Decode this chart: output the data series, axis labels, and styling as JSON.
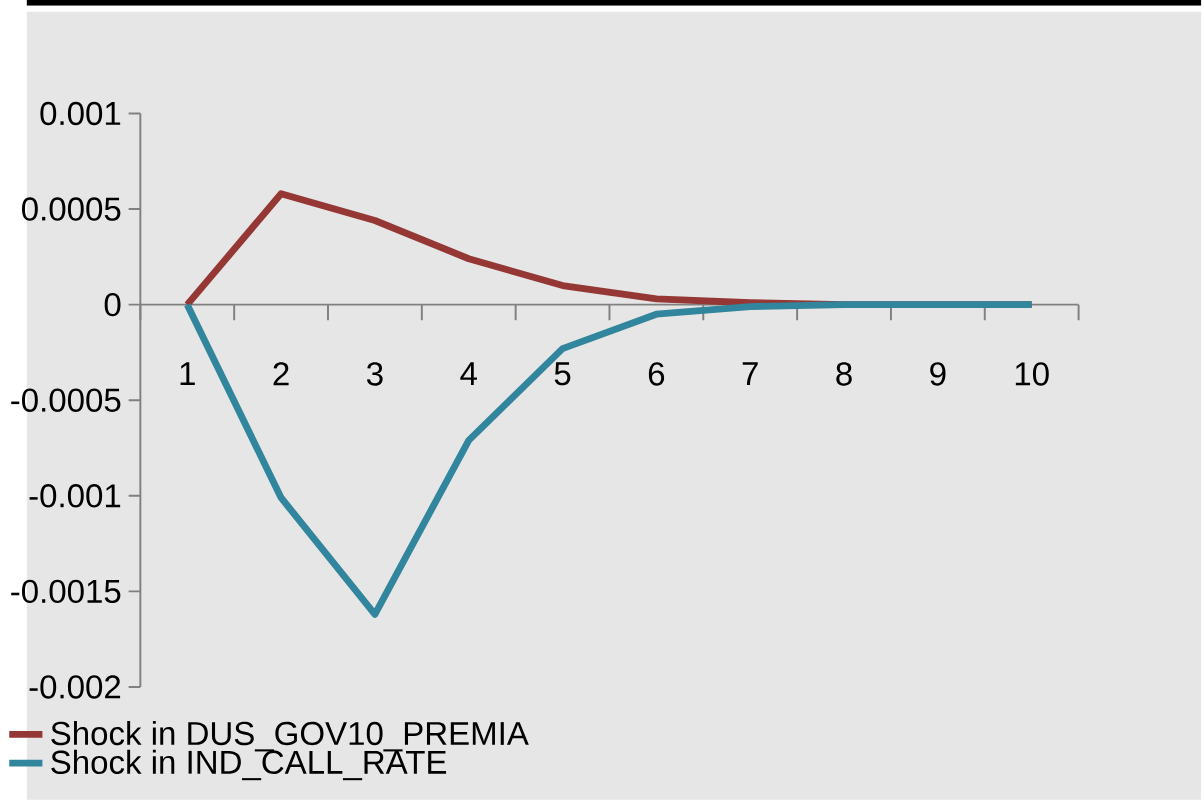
{
  "chart_data": {
    "type": "line",
    "categories": [
      "1",
      "2",
      "3",
      "4",
      "5",
      "6",
      "7",
      "8",
      "9",
      "10"
    ],
    "series": [
      {
        "name": "Shock in DUS_GOV10_PREMIA",
        "color": "#953735",
        "values": [
          0,
          0.00058,
          0.00044,
          0.00024,
          0.0001,
          3e-05,
          1e-05,
          0,
          0,
          0
        ]
      },
      {
        "name": "Shock in IND_CALL_RATE",
        "color": "#31859c",
        "values": [
          0,
          -0.00101,
          -0.00162,
          -0.00071,
          -0.00023,
          -5e-05,
          -1e-05,
          0,
          0,
          0
        ]
      }
    ],
    "ylim": [
      -0.002,
      0.001
    ],
    "yticks": [
      0.001,
      0.0005,
      0,
      -0.0005,
      -0.001,
      -0.0015,
      -0.002
    ],
    "legend": "bottom"
  }
}
